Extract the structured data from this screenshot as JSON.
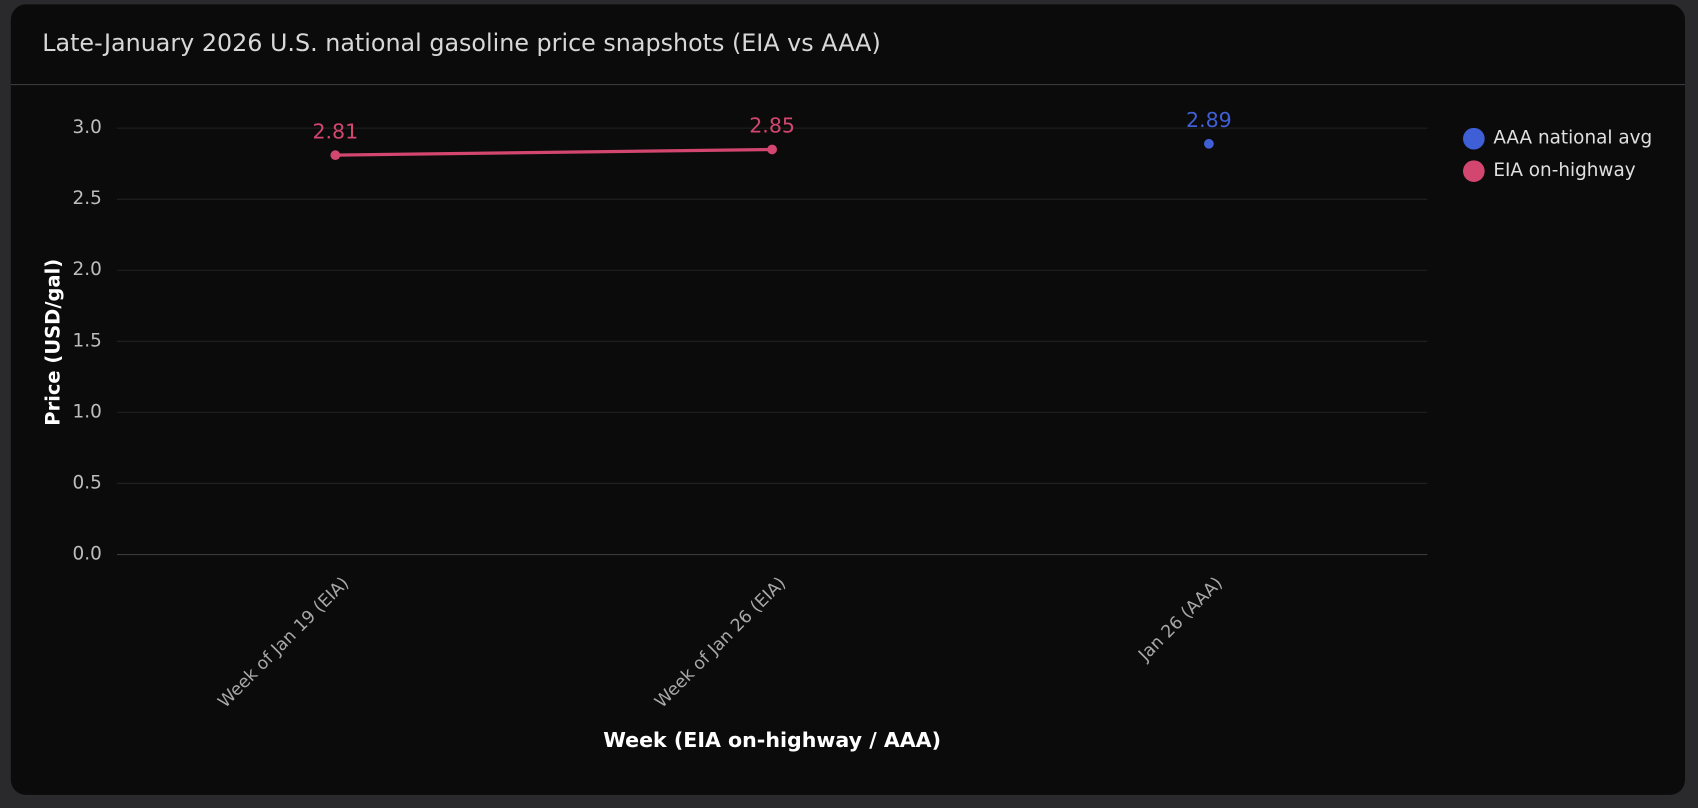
{
  "chart_data": {
    "type": "line",
    "title": "Late-January 2026 U.S. national gasoline price snapshots (EIA vs AAA)",
    "x_label": "Week (EIA on-highway / AAA)",
    "y_label": "Price (USD/gal)",
    "categories": [
      "Week of Jan 19 (EIA)",
      "Week of Jan 26 (EIA)",
      "Jan 26 (AAA)"
    ],
    "series": [
      {
        "name": "AAA national avg",
        "color": "#3f5fd6",
        "values": [
          null,
          null,
          2.89
        ]
      },
      {
        "name": "EIA on-highway",
        "color": "#d2466f",
        "values": [
          2.81,
          2.85,
          null
        ]
      }
    ],
    "ylim": [
      0,
      3.2
    ],
    "yticks": [
      {
        "value": 0,
        "label": "0.0"
      },
      0.5,
      {
        "value": 1,
        "label": "1.0"
      },
      1.5,
      {
        "value": 2,
        "label": "2.0"
      },
      2.5,
      {
        "value": 3,
        "label": "3.0"
      }
    ],
    "grid": true,
    "legend": "right"
  }
}
